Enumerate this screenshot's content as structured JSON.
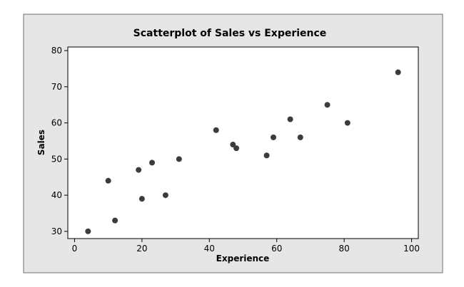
{
  "chart_data": {
    "type": "scatter",
    "title": "Scatterplot of Sales vs Experience",
    "xlabel": "Experience",
    "ylabel": "Sales",
    "xlim": [
      -2,
      102
    ],
    "ylim": [
      28,
      81
    ],
    "xticks": [
      0,
      20,
      40,
      60,
      80,
      100
    ],
    "yticks": [
      30,
      40,
      50,
      60,
      70,
      80
    ],
    "grid": false,
    "legend": "none",
    "colors": {
      "frame_fill": "#e6e6e6",
      "plot_fill": "#ffffff",
      "point": "#3c3c3c",
      "axis": "#000000"
    },
    "points": [
      {
        "x": 4,
        "y": 30
      },
      {
        "x": 10,
        "y": 44
      },
      {
        "x": 12,
        "y": 33
      },
      {
        "x": 19,
        "y": 47
      },
      {
        "x": 20,
        "y": 39
      },
      {
        "x": 23,
        "y": 49
      },
      {
        "x": 27,
        "y": 40
      },
      {
        "x": 31,
        "y": 50
      },
      {
        "x": 42,
        "y": 58
      },
      {
        "x": 47,
        "y": 54
      },
      {
        "x": 48,
        "y": 53
      },
      {
        "x": 57,
        "y": 51
      },
      {
        "x": 59,
        "y": 56
      },
      {
        "x": 64,
        "y": 61
      },
      {
        "x": 67,
        "y": 56
      },
      {
        "x": 75,
        "y": 65
      },
      {
        "x": 81,
        "y": 60
      },
      {
        "x": 96,
        "y": 74
      }
    ]
  }
}
